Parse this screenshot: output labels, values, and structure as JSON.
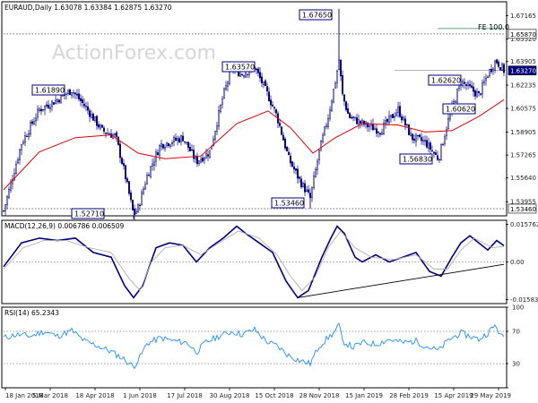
{
  "header": {
    "price": "EURAUD,Daily  1.63078 1.63384 1.62875 1.63270",
    "macd": "MACD(12,26,9) 0.006786 0.006509",
    "rsi": "RSI(14) 65.2343"
  },
  "watermark": "ActionForex.com",
  "colors": {
    "candle": "#000080",
    "ma": "#e00000",
    "macd": "#000080",
    "signal": "#b0b0b0",
    "rsi": "#1e90ff",
    "trendline": "#000000"
  },
  "chart_data": [
    {
      "type": "candlestick",
      "panel": "price",
      "x_labels": [
        "18 Jan 2018",
        "5 Mar 2018",
        "18 Apr 2018",
        "1 Jun 2018",
        "17 Jul 2018",
        "30 Aug 2018",
        "15 Oct 2018",
        "28 Nov 2018",
        "15 Jan 2019",
        "28 Feb 2019",
        "15 Apr 2019",
        "29 May 2019"
      ],
      "y_ticks": [
        1.53955,
        1.5564,
        1.57265,
        1.58905,
        1.60575,
        1.62235,
        1.63905,
        1.6552,
        1.67165
      ],
      "ylim": [
        1.5295,
        1.6815
      ],
      "close_path": [
        [
          0,
          1.533
        ],
        [
          20,
          1.581
        ],
        [
          40,
          1.605
        ],
        [
          60,
          1.612
        ],
        [
          76,
          1.6189
        ],
        [
          90,
          1.608
        ],
        [
          110,
          1.59
        ],
        [
          125,
          1.586
        ],
        [
          135,
          1.56
        ],
        [
          145,
          1.53
        ],
        [
          150,
          1.535
        ],
        [
          160,
          1.558
        ],
        [
          175,
          1.58
        ],
        [
          200,
          1.585
        ],
        [
          215,
          1.568
        ],
        [
          230,
          1.575
        ],
        [
          245,
          1.615
        ],
        [
          255,
          1.635
        ],
        [
          265,
          1.63
        ],
        [
          280,
          1.635
        ],
        [
          295,
          1.615
        ],
        [
          305,
          1.6
        ],
        [
          318,
          1.57
        ],
        [
          330,
          1.555
        ],
        [
          342,
          1.542
        ],
        [
          352,
          1.575
        ],
        [
          362,
          1.6
        ],
        [
          370,
          1.625
        ],
        [
          374,
          1.64
        ],
        [
          378,
          1.615
        ],
        [
          385,
          1.6
        ],
        [
          400,
          1.595
        ],
        [
          420,
          1.59
        ],
        [
          440,
          1.605
        ],
        [
          455,
          1.585
        ],
        [
          470,
          1.582
        ],
        [
          485,
          1.57
        ],
        [
          497,
          1.6
        ],
        [
          510,
          1.625
        ],
        [
          520,
          1.62
        ],
        [
          530,
          1.615
        ],
        [
          540,
          1.63
        ],
        [
          549,
          1.64
        ],
        [
          558,
          1.6327
        ]
      ],
      "moving_average": [
        [
          0,
          1.548
        ],
        [
          40,
          1.575
        ],
        [
          80,
          1.585
        ],
        [
          120,
          1.587
        ],
        [
          150,
          1.574
        ],
        [
          180,
          1.57
        ],
        [
          220,
          1.572
        ],
        [
          260,
          1.595
        ],
        [
          295,
          1.604
        ],
        [
          320,
          1.592
        ],
        [
          345,
          1.574
        ],
        [
          370,
          1.585
        ],
        [
          400,
          1.595
        ],
        [
          440,
          1.594
        ],
        [
          470,
          1.589
        ],
        [
          500,
          1.59
        ],
        [
          530,
          1.6
        ],
        [
          558,
          1.612
        ]
      ],
      "annotations": [
        {
          "label": "1.61890",
          "value": 1.6189
        },
        {
          "label": "1.52710",
          "value": 1.5271
        },
        {
          "label": "1.63570",
          "value": 1.6357
        },
        {
          "label": "1.67650",
          "value": 1.6765
        },
        {
          "label": "1.53460",
          "value": 1.5346
        },
        {
          "label": "1.62620",
          "value": 1.6262
        },
        {
          "label": "1.60620",
          "value": 1.6062
        },
        {
          "label": "1.56830",
          "value": 1.5683
        },
        {
          "label": "FE 100.0",
          "value": 1.6587
        }
      ],
      "horizontal_levels": [
        {
          "label": "1.65870",
          "value": 1.6587,
          "style": "dotted"
        },
        {
          "label": "1.53460",
          "value": 1.5346,
          "style": "dotted"
        },
        {
          "label": "1.63270",
          "value": 1.6327,
          "style": "current"
        }
      ]
    },
    {
      "type": "line",
      "panel": "macd",
      "y_ticks": [
        0.015762,
        0.0,
        -0.015834
      ],
      "ylim": [
        -0.0175,
        0.0175
      ],
      "series": [
        {
          "role": "macd",
          "values": [
            [
              0,
              -0.002
            ],
            [
              20,
              0.008
            ],
            [
              40,
              0.01
            ],
            [
              60,
              0.009
            ],
            [
              80,
              0.01
            ],
            [
              100,
              0.004
            ],
            [
              120,
              0.002
            ],
            [
              135,
              -0.01
            ],
            [
              145,
              -0.015
            ],
            [
              155,
              -0.01
            ],
            [
              170,
              0.006
            ],
            [
              185,
              0.008
            ],
            [
              200,
              0.007
            ],
            [
              215,
              0.0
            ],
            [
              230,
              0.006
            ],
            [
              245,
              0.01
            ],
            [
              260,
              0.015
            ],
            [
              270,
              0.012
            ],
            [
              285,
              0.008
            ],
            [
              300,
              0.004
            ],
            [
              315,
              -0.008
            ],
            [
              328,
              -0.015
            ],
            [
              340,
              -0.012
            ],
            [
              355,
              0.002
            ],
            [
              365,
              0.01
            ],
            [
              372,
              0.015
            ],
            [
              380,
              0.012
            ],
            [
              392,
              0.002
            ],
            [
              400,
              0.0
            ],
            [
              415,
              0.003
            ],
            [
              430,
              0.0
            ],
            [
              445,
              0.002
            ],
            [
              460,
              0.004
            ],
            [
              475,
              -0.004
            ],
            [
              488,
              -0.006
            ],
            [
              500,
              0.002
            ],
            [
              510,
              0.008
            ],
            [
              520,
              0.011
            ],
            [
              530,
              0.008
            ],
            [
              540,
              0.005
            ],
            [
              550,
              0.009
            ],
            [
              558,
              0.0068
            ]
          ]
        },
        {
          "role": "signal",
          "values": [
            [
              0,
              -0.003
            ],
            [
              22,
              0.006
            ],
            [
              45,
              0.009
            ],
            [
              70,
              0.009
            ],
            [
              95,
              0.006
            ],
            [
              120,
              0.004
            ],
            [
              140,
              -0.007
            ],
            [
              152,
              -0.012
            ],
            [
              165,
              0.0
            ],
            [
              180,
              0.006
            ],
            [
              200,
              0.007
            ],
            [
              220,
              0.003
            ],
            [
              240,
              0.008
            ],
            [
              262,
              0.013
            ],
            [
              285,
              0.01
            ],
            [
              305,
              0.003
            ],
            [
              320,
              -0.006
            ],
            [
              333,
              -0.012
            ],
            [
              348,
              -0.006
            ],
            [
              362,
              0.006
            ],
            [
              376,
              0.013
            ],
            [
              392,
              0.006
            ],
            [
              410,
              0.002
            ],
            [
              435,
              0.001
            ],
            [
              460,
              0.003
            ],
            [
              480,
              -0.003
            ],
            [
              495,
              -0.003
            ],
            [
              510,
              0.005
            ],
            [
              525,
              0.01
            ],
            [
              545,
              0.006
            ],
            [
              558,
              0.0065
            ]
          ]
        },
        {
          "role": "trendline",
          "values": [
            [
              328,
              -0.015
            ],
            [
              558,
              -0.001
            ]
          ]
        }
      ]
    },
    {
      "type": "line",
      "panel": "rsi",
      "y_ticks": [
        100,
        70,
        30,
        0
      ],
      "ylim": [
        0,
        100
      ],
      "series": [
        {
          "role": "rsi",
          "values": [
            [
              0,
              62
            ],
            [
              15,
              66
            ],
            [
              30,
              64
            ],
            [
              45,
              70
            ],
            [
              60,
              64
            ],
            [
              76,
              71
            ],
            [
              90,
              58
            ],
            [
              105,
              52
            ],
            [
              120,
              45
            ],
            [
              135,
              35
            ],
            [
              145,
              26
            ],
            [
              152,
              38
            ],
            [
              160,
              55
            ],
            [
              175,
              62
            ],
            [
              190,
              58
            ],
            [
              205,
              56
            ],
            [
              215,
              44
            ],
            [
              225,
              56
            ],
            [
              240,
              64
            ],
            [
              255,
              70
            ],
            [
              265,
              66
            ],
            [
              280,
              72
            ],
            [
              295,
              56
            ],
            [
              305,
              52
            ],
            [
              318,
              40
            ],
            [
              330,
              34
            ],
            [
              342,
              30
            ],
            [
              352,
              52
            ],
            [
              362,
              62
            ],
            [
              370,
              70
            ],
            [
              374,
              78
            ],
            [
              378,
              58
            ],
            [
              390,
              50
            ],
            [
              400,
              56
            ],
            [
              415,
              54
            ],
            [
              430,
              60
            ],
            [
              445,
              56
            ],
            [
              460,
              58
            ],
            [
              470,
              52
            ],
            [
              485,
              46
            ],
            [
              497,
              60
            ],
            [
              510,
              68
            ],
            [
              520,
              64
            ],
            [
              530,
              60
            ],
            [
              540,
              68
            ],
            [
              549,
              78
            ],
            [
              555,
              62
            ],
            [
              558,
              65
            ]
          ]
        }
      ]
    }
  ]
}
